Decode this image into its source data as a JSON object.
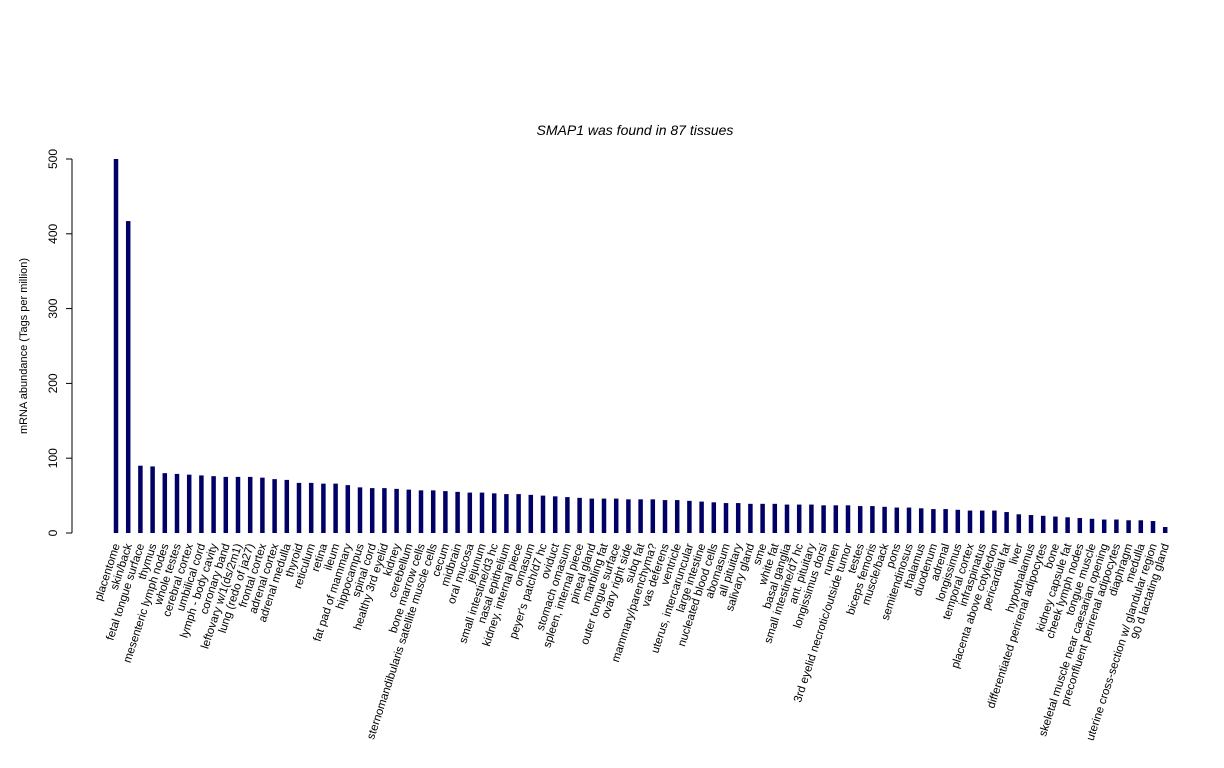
{
  "chart_data": {
    "type": "bar",
    "title": "SMAP1  was found in  87  tissues",
    "ylabel": "mRNA abundance (Tags per million)",
    "xlabel": "",
    "ylim": [
      0,
      500
    ],
    "yticks": [
      0,
      100,
      200,
      300,
      400,
      500
    ],
    "bar_color": "#000066",
    "grid": false,
    "legend": "none",
    "categories": [
      "placentome",
      "skin/back",
      "fetal tongue surface",
      "thymus",
      "mesenteric lymph nodes",
      "whole testes",
      "cerebral cortex",
      "umbilical cord",
      "lymph - body cavity",
      "coronary band",
      "leftovary w/1(ds/2m1)",
      "lung (redo of ja27)",
      "frontal cortex",
      "adrenal cortex",
      "adrenal medulla",
      "thyroid",
      "reticulum",
      "retina",
      "ileum",
      "fat pad of mammary",
      "hippocampus",
      "spinal cord",
      "healthy 3rd eyelid",
      "kidney",
      "cerebellum",
      "bone marrow cells",
      "sternomandibularis satellite muscle cells",
      "cecum",
      "midbrain",
      "oral mucosa",
      "jejunum",
      "small intestine/d3 hc",
      "nasal epithelium",
      "kidney, internal piece",
      "omasum",
      "peyer's patch/d7 hc",
      "oviduct",
      "stomach omasum",
      "spleen, internal piece",
      "pineal gland",
      "marbling fat",
      "outer tongue surface",
      "ovary right side",
      "subq fat",
      "mammary/parenchyma?",
      "vas deferens",
      "ventricle",
      "uterus, intercaruncular",
      "large intestine",
      "nucleated blood cells",
      "abomasum",
      "all pituitary",
      "salivary gland",
      "sme",
      "white fat",
      "basal ganglia",
      "small intestine/d7 hc",
      "ant. pituitary",
      "longissimus dorsi",
      "rumen",
      "3rd eyelid necrotic/outside tumor",
      "testes",
      "biceps femoris",
      "muscle/back",
      "pons",
      "semitendinosus",
      "thalamus",
      "duodenum",
      "adrenal",
      "longissimus",
      "temporal cortex",
      "infraspinatus",
      "placenta above cotyledon",
      "pericardial fat",
      "liver",
      "hypothalamus",
      "differentiated perirenal adipocytes",
      "bone",
      "kidney capsule fat",
      "cheek lymph nodes",
      "tongue muscle",
      "skeletal muscle near caesarian opening",
      "preconfluent perirenal adipocytes",
      "diaphragm",
      "medulla",
      "uterine cross-section w/ glandular region",
      "90 d lactating gland"
    ],
    "values": [
      500,
      417,
      90,
      89,
      80,
      79,
      78,
      77,
      76,
      75,
      75,
      75,
      74,
      72,
      71,
      67,
      67,
      66,
      66,
      64,
      61,
      60,
      60,
      59,
      58,
      57,
      57,
      56,
      55,
      54,
      54,
      53,
      52,
      52,
      51,
      50,
      49,
      48,
      47,
      46,
      46,
      46,
      45,
      45,
      45,
      44,
      44,
      43,
      42,
      41,
      40,
      40,
      39,
      39,
      39,
      38,
      38,
      38,
      37,
      37,
      37,
      36,
      36,
      35,
      34,
      34,
      33,
      32,
      32,
      31,
      30,
      30,
      30,
      28,
      25,
      24,
      23,
      22,
      21,
      20,
      19,
      18,
      18,
      17,
      17,
      16,
      8
    ]
  }
}
